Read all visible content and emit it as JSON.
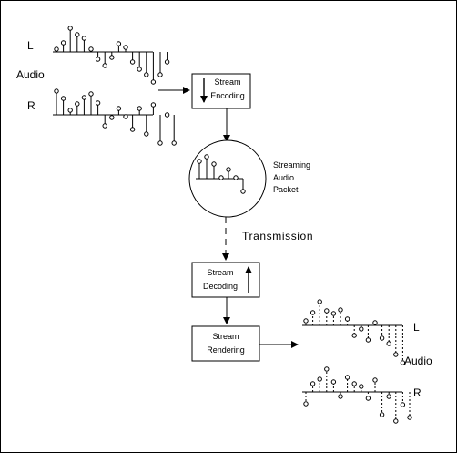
{
  "audio_input": {
    "left_label": "L",
    "right_label": "R",
    "audio_label": "Audio"
  },
  "encoding_box": {
    "line1": "Stream",
    "line2": "Encoding"
  },
  "packet": {
    "line1": "Streaming",
    "line2": "Audio",
    "line3": "Packet"
  },
  "transmission_label": "Transmission",
  "decoding_box": {
    "line1": "Stream",
    "line2": "Decoding"
  },
  "rendering_box": {
    "line1": "Stream",
    "line2": "Rendering"
  },
  "audio_output": {
    "left_label": "L",
    "right_label": "R",
    "audio_label": "Audio"
  }
}
